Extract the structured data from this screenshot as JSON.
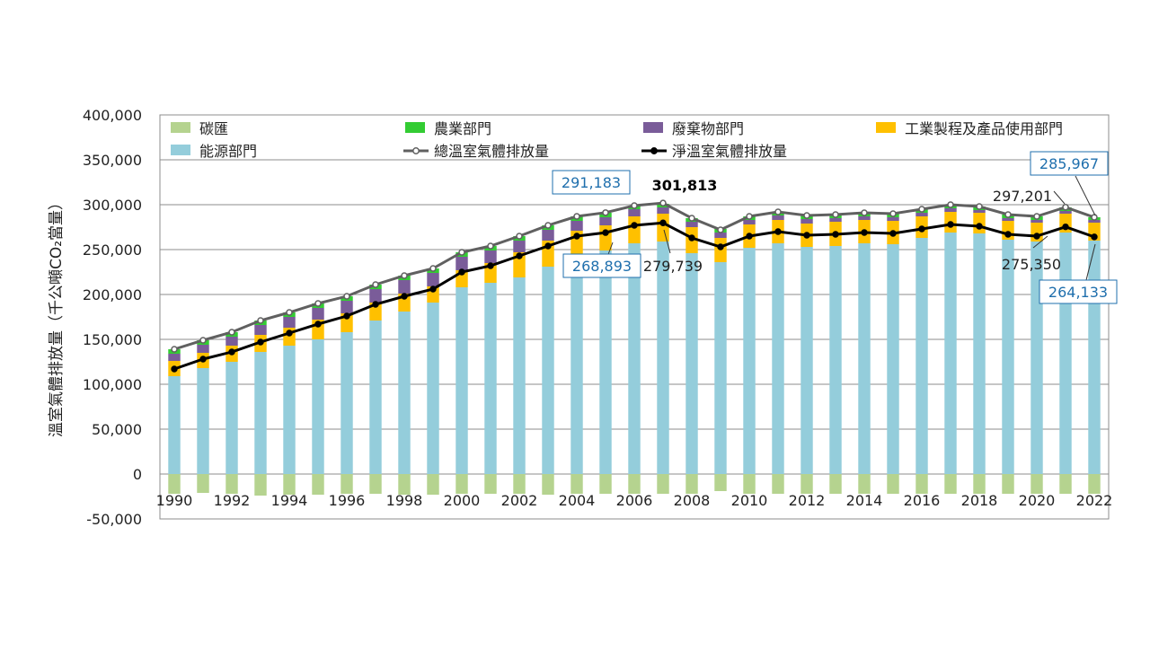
{
  "chart_data": {
    "type": "bar",
    "ylabel": "溫室氣體排放量（千公噸CO₂當量）",
    "ylim": [
      -50000,
      400000
    ],
    "yticks": [
      "400,000",
      "350,000",
      "300,000",
      "250,000",
      "200,000",
      "150,000",
      "100,000",
      "50,000",
      "0",
      "-50,000"
    ],
    "ytick_values": [
      400000,
      350000,
      300000,
      250000,
      200000,
      150000,
      100000,
      50000,
      0,
      -50000
    ],
    "years": [
      1990,
      1991,
      1992,
      1993,
      1994,
      1995,
      1996,
      1997,
      1998,
      1999,
      2000,
      2001,
      2002,
      2003,
      2004,
      2005,
      2006,
      2007,
      2008,
      2009,
      2010,
      2011,
      2012,
      2013,
      2014,
      2015,
      2016,
      2017,
      2018,
      2019,
      2020,
      2021,
      2022
    ],
    "x_tick_labels": [
      "1990",
      "1992",
      "1994",
      "1996",
      "1998",
      "2000",
      "2002",
      "2004",
      "2006",
      "2008",
      "2010",
      "2012",
      "2014",
      "2016",
      "2018",
      "2020",
      "2022"
    ],
    "series": [
      {
        "name": "碳匯",
        "color": "#b5d38f",
        "values": [
          -22000,
          -21000,
          -22000,
          -24000,
          -23000,
          -23000,
          -22000,
          -22000,
          -23000,
          -23000,
          -22000,
          -22000,
          -22000,
          -23000,
          -22000,
          -22000,
          -22000,
          -22000,
          -22000,
          -19000,
          -22000,
          -22000,
          -22000,
          -22000,
          -22000,
          -22000,
          -22000,
          -22000,
          -22000,
          -22000,
          -22000,
          -22000,
          -22000
        ]
      },
      {
        "name": "農業部門",
        "color": "#33cc33",
        "values": [
          5000,
          5000,
          5000,
          5000,
          5000,
          5000,
          5000,
          5000,
          5000,
          5000,
          5000,
          5000,
          5000,
          5000,
          5000,
          5000,
          4000,
          4000,
          4000,
          4000,
          4000,
          4000,
          4000,
          4000,
          4000,
          4000,
          4000,
          4000,
          4000,
          4000,
          4000,
          4000,
          3000
        ]
      },
      {
        "name": "廢棄物部門",
        "color": "#7a5c99",
        "values": [
          8000,
          9000,
          10000,
          11000,
          12000,
          13000,
          14000,
          15000,
          15000,
          15000,
          15000,
          14000,
          13000,
          12000,
          11000,
          9000,
          8000,
          7000,
          6000,
          6000,
          5000,
          5000,
          5000,
          4000,
          4000,
          4000,
          4000,
          4000,
          3000,
          3000,
          3000,
          3000,
          3000
        ]
      },
      {
        "name": "工業製程及產品使用部門",
        "color": "#ffc000",
        "values": [
          17000,
          17000,
          18000,
          19000,
          20000,
          22000,
          21000,
          20000,
          20000,
          18000,
          19000,
          22000,
          28000,
          29000,
          28000,
          28000,
          30000,
          31000,
          29000,
          27000,
          26000,
          26000,
          26000,
          27000,
          26000,
          26000,
          24000,
          23000,
          23000,
          21000,
          21000,
          21000,
          20000
        ]
      },
      {
        "name": "能源部門",
        "color": "#94cddb",
        "values": [
          109000,
          118000,
          125000,
          136000,
          143000,
          150000,
          158000,
          171000,
          181000,
          191000,
          208000,
          213000,
          219000,
          231000,
          243000,
          249000,
          257000,
          259000,
          246000,
          236000,
          252000,
          257000,
          253000,
          254000,
          257000,
          256000,
          263000,
          269000,
          268000,
          261000,
          259000,
          269000,
          260000
        ]
      },
      {
        "name": "總溫室氣體排放量",
        "color": "#606060",
        "values": [
          139000,
          149000,
          158000,
          171000,
          180000,
          190000,
          198000,
          211000,
          221000,
          229000,
          247000,
          254000,
          265000,
          277000,
          287000,
          291183,
          299000,
          301813,
          285000,
          272000,
          287000,
          292000,
          288000,
          289000,
          291000,
          290000,
          295000,
          300000,
          298000,
          289000,
          287000,
          297201,
          285967
        ]
      },
      {
        "name": "淨溫室氣體排放量",
        "color": "#000000",
        "values": [
          117000,
          128000,
          136000,
          147000,
          157000,
          167000,
          176000,
          189000,
          198000,
          206000,
          225000,
          232000,
          243000,
          254000,
          265000,
          268893,
          277000,
          279739,
          263000,
          253000,
          265000,
          270000,
          266000,
          267000,
          269000,
          268000,
          273000,
          278000,
          276000,
          267000,
          265000,
          275350,
          264133
        ]
      }
    ],
    "legend": [
      {
        "label": "碳匯",
        "kind": "box",
        "color": "#b5d38f"
      },
      {
        "label": "農業部門",
        "kind": "box",
        "color": "#33cc33"
      },
      {
        "label": "廢棄物部門",
        "kind": "box",
        "color": "#7a5c99"
      },
      {
        "label": "工業製程及產品使用部門",
        "kind": "box",
        "color": "#ffc000"
      },
      {
        "label": "能源部門",
        "kind": "box",
        "color": "#94cddb"
      },
      {
        "label": "總溫室氣體排放量",
        "kind": "line-open",
        "color": "#606060"
      },
      {
        "label": "淨溫室氣體排放量",
        "kind": "line-solid",
        "color": "#000000"
      }
    ],
    "annotations": [
      {
        "text": "291,183",
        "boxed": true,
        "color": "#1f6fad"
      },
      {
        "text": "268,893",
        "boxed": true,
        "color": "#1f6fad"
      },
      {
        "text": "301,813",
        "boxed": false,
        "color": "#000000"
      },
      {
        "text": "279,739",
        "boxed": false,
        "color": "#222222"
      },
      {
        "text": "285,967",
        "boxed": true,
        "color": "#1f6fad"
      },
      {
        "text": "297,201",
        "boxed": false,
        "color": "#222222"
      },
      {
        "text": "275,350",
        "boxed": false,
        "color": "#222222"
      },
      {
        "text": "264,133",
        "boxed": true,
        "color": "#1f6fad"
      }
    ]
  }
}
